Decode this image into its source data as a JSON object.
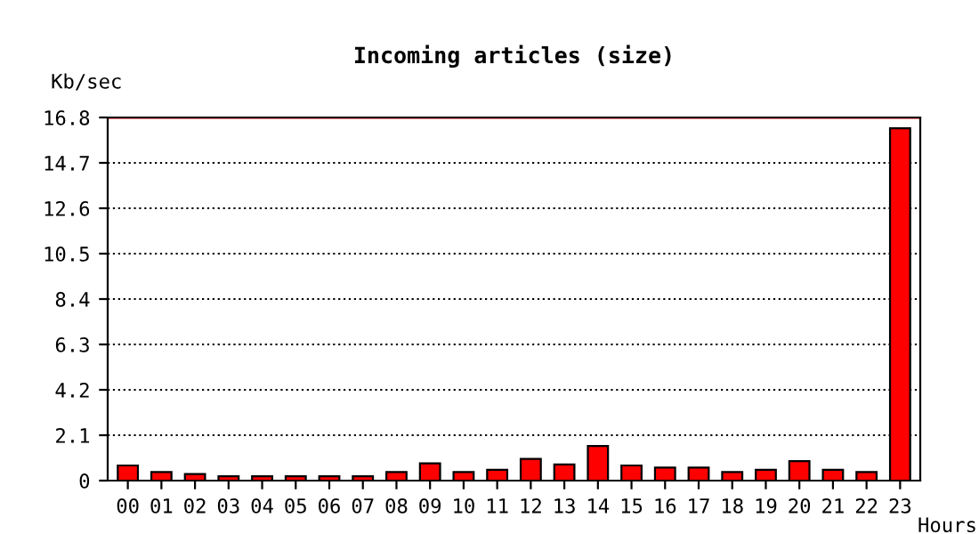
{
  "chart_data": {
    "type": "bar",
    "title": "Incoming articles (size)",
    "xlabel": "Hours",
    "ylabel": "Kb/sec",
    "categories": [
      "00",
      "01",
      "02",
      "03",
      "04",
      "05",
      "06",
      "07",
      "08",
      "09",
      "10",
      "11",
      "12",
      "13",
      "14",
      "15",
      "16",
      "17",
      "18",
      "19",
      "20",
      "21",
      "22",
      "23"
    ],
    "series": [
      {
        "color": "#ff0000",
        "values": [
          0.7,
          0.4,
          0.3,
          0.2,
          0.2,
          0.2,
          0.2,
          0.2,
          0.4,
          0.8,
          0.4,
          0.5,
          1.0,
          0.75,
          1.6,
          0.7,
          0.6,
          0.6,
          0.4,
          0.5,
          0.9,
          0.5,
          0.4,
          16.3
        ]
      }
    ],
    "ylim": [
      0,
      16.8
    ],
    "yticks": [
      0,
      2.1,
      4.2,
      6.3,
      8.4,
      10.5,
      12.6,
      14.7,
      16.8
    ],
    "grid": "y",
    "ref_lines": [
      {
        "axis": "y",
        "value": 16.8,
        "color": "#ff0000"
      }
    ]
  }
}
